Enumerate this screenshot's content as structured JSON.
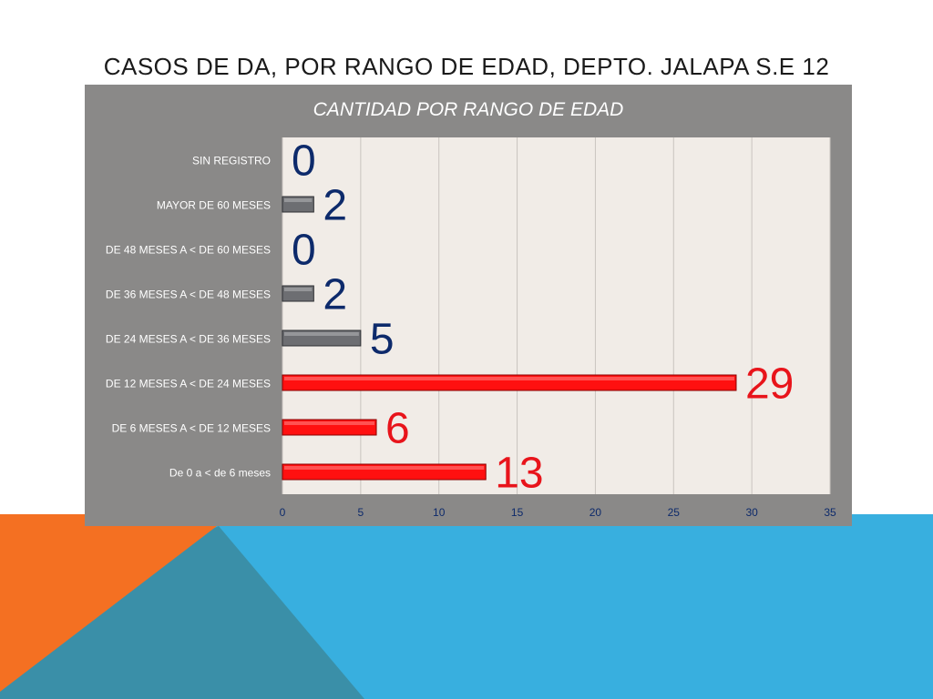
{
  "slide": {
    "title": "CASOS DE DA, POR  RANGO DE EDAD, DEPTO. JALAPA S.E 12"
  },
  "colors": {
    "orange": "#f47022",
    "blue": "#38afdf",
    "dark_blue": "#3a8fa8",
    "panel": "#8a8988",
    "plot_bg": "#f1ece7",
    "bar_red": "#ff1010",
    "bar_gray": "#6d6e72",
    "label_navy": "#0d2a6b",
    "label_red": "#e8141b"
  },
  "chart_data": {
    "type": "bar",
    "orientation": "horizontal",
    "title": "CANTIDAD POR RANGO DE EDAD",
    "categories": [
      "SIN REGISTRO",
      "MAYOR DE 60 MESES",
      "DE 48 MESES A < DE 60 MESES",
      "DE 36 MESES A < DE 48 MESES",
      "DE 24 MESES A < DE 36 MESES",
      "DE 12 MESES A < DE 24 MESES",
      "DE 6 MESES A < DE 12 MESES",
      "De 0 a < de 6 meses"
    ],
    "values": [
      0,
      2,
      0,
      2,
      5,
      29,
      6,
      13
    ],
    "data_labels": [
      "0",
      "2",
      "0",
      "2",
      "5",
      "29",
      "6",
      "13"
    ],
    "bar_colors": [
      "gray",
      "gray",
      "gray",
      "gray",
      "gray",
      "red",
      "red",
      "red"
    ],
    "xlim": [
      0,
      35
    ],
    "xticks": [
      "0",
      "5",
      "10",
      "15",
      "20",
      "25",
      "30",
      "35"
    ],
    "grid": true,
    "legend": "none"
  }
}
